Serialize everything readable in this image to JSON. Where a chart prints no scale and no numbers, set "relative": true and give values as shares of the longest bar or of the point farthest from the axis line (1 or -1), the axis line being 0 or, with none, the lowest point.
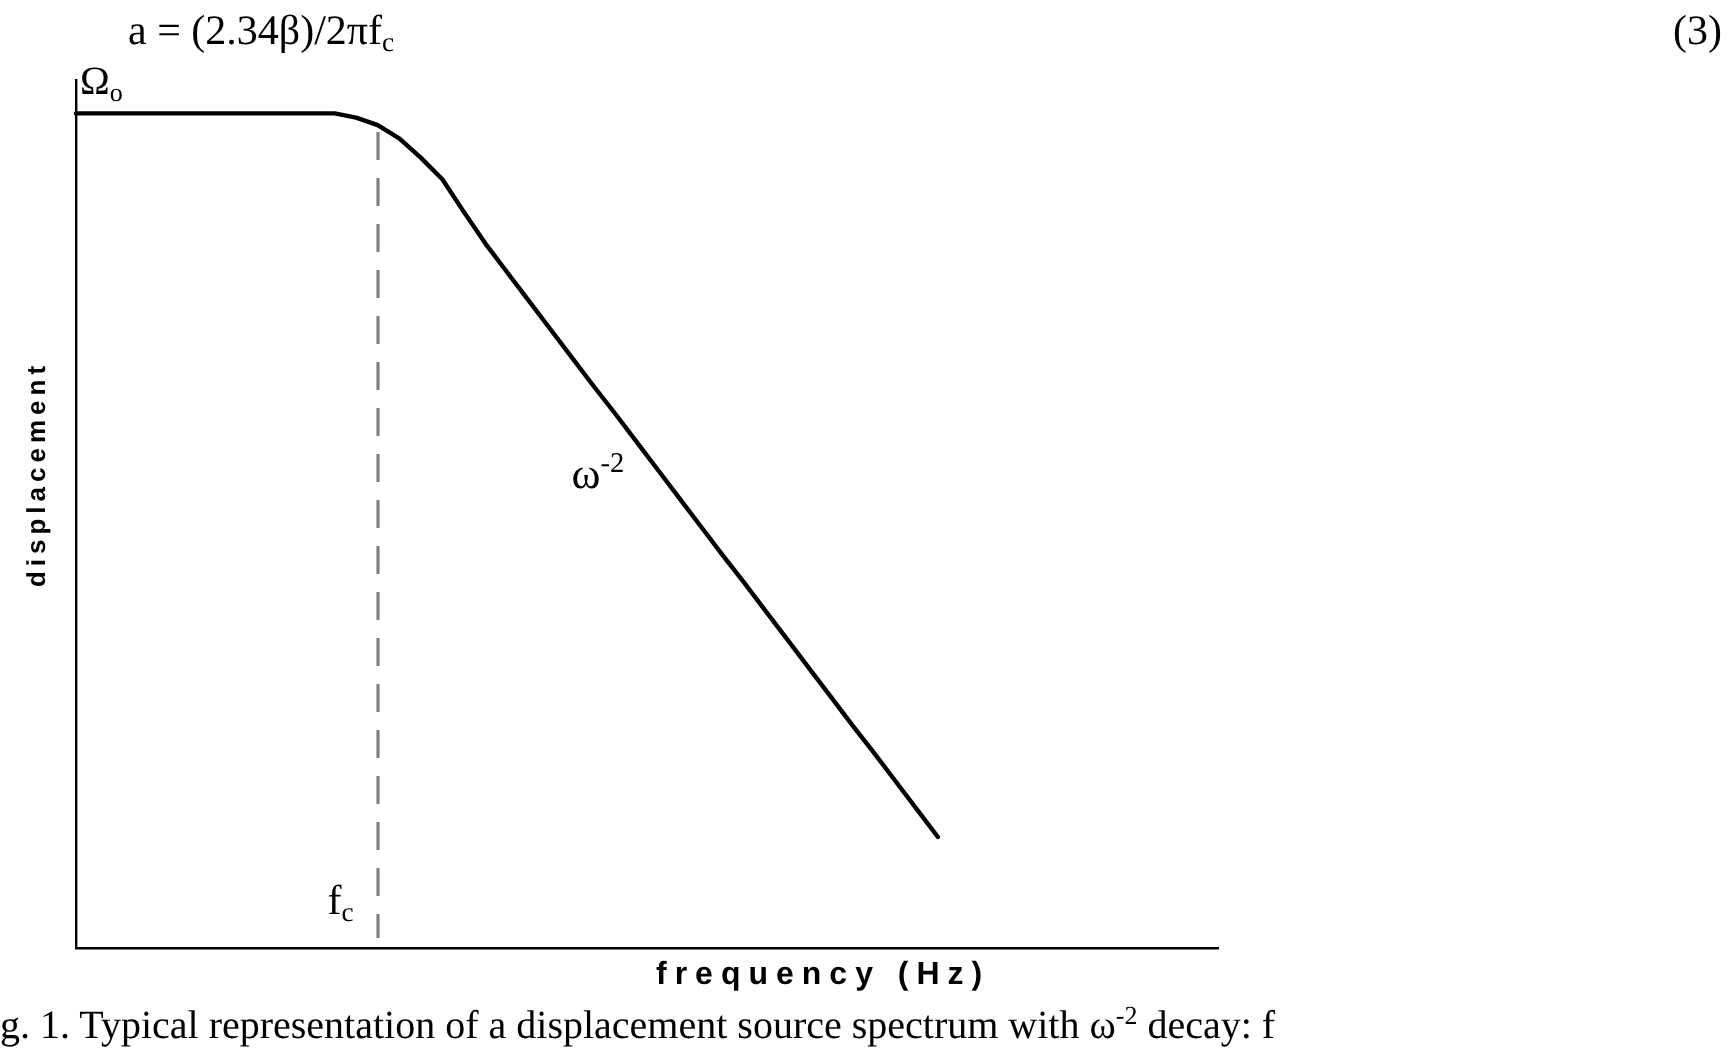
{
  "chart_data": {
    "type": "line",
    "xlabel": "frequency (Hz)",
    "ylabel": "displacement",
    "relative": true,
    "categories": [
      null,
      null,
      null,
      null,
      null,
      null,
      null,
      null,
      null,
      null,
      null,
      null,
      null,
      null,
      null,
      null,
      null,
      null,
      null,
      null,
      null,
      null,
      null,
      null,
      null,
      null,
      null,
      null,
      null,
      null,
      null,
      null,
      null,
      null,
      null,
      null,
      null,
      null,
      null,
      null,
      null,
      null,
      null,
      null,
      null,
      null,
      null,
      null,
      null,
      null,
      null,
      null,
      null,
      null
    ],
    "values": [
      1,
      1,
      1,
      1,
      1,
      1,
      1,
      1,
      1,
      1,
      1,
      1,
      1,
      0.995,
      0.986,
      0.97,
      0.947,
      0.921,
      0.882,
      0.844,
      0.81,
      0.776,
      0.742,
      0.708,
      0.674,
      0.641,
      0.607,
      0.573,
      0.539,
      0.505,
      0.471,
      0.438,
      0.404,
      0.37,
      0.336,
      0.302,
      0.268,
      0.235,
      0.201,
      0.167,
      0.133,
      null,
      null,
      null,
      null,
      null,
      null,
      null,
      null,
      null,
      null,
      null,
      null,
      null
    ],
    "color": "#000000",
    "marker": "none",
    "annotations": [
      "a = (2.34β)/2πf$_{c}$",
      "(3)",
      "Ω$_{o}$",
      "ω$^{-2}$",
      "f$_{c}$",
      "g. 1. Typical representation of a displacement source spectrum with ω$^{-2}$ decay: f"
    ]
  }
}
